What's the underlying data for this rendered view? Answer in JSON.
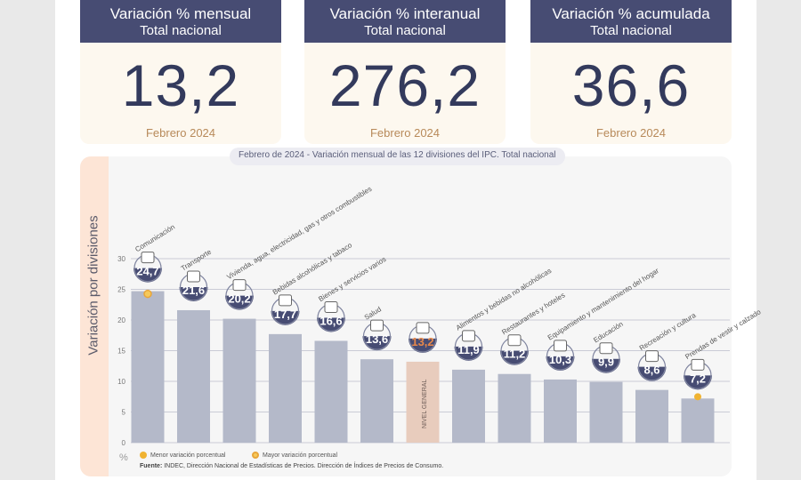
{
  "cards": [
    {
      "title": "Variación % mensual",
      "subtitle": "Total nacional",
      "value": "13,2",
      "date": "Febrero 2024"
    },
    {
      "title": "Variación % interanual",
      "subtitle": "Total nacional",
      "value": "276,2",
      "date": "Febrero 2024"
    },
    {
      "title": "Variación % acumulada",
      "subtitle": "Total nacional",
      "value": "36,6",
      "date": "Febrero 2024"
    }
  ],
  "chart_title": "Febrero de 2024 - Variación mensual de las 12 divisiones del IPC. Total nacional",
  "chart_data": {
    "type": "bar",
    "ylabel": "Variación por divisiones",
    "unit": "%",
    "ylim": [
      0,
      30
    ],
    "yticks": [
      "0",
      "5",
      "10",
      "15",
      "20",
      "25",
      "30"
    ],
    "categories": [
      "Comunicación",
      "Transporte",
      "Vivienda, agua, electricidad, gas y otros combustibles",
      "Bebidas alcohólicas y tabaco",
      "Bienes y servicios varios",
      "Salud",
      "NIVEL GENERAL",
      "Alimentos y bebidas no alcohólicas",
      "Restaurantes y hoteles",
      "Equipamiento y mantenimiento del hogar",
      "Educación",
      "Recreación y cultura",
      "Prendas de vestir y calzado"
    ],
    "values": [
      24.7,
      21.6,
      20.2,
      17.7,
      16.6,
      13.6,
      13.2,
      11.9,
      11.2,
      10.3,
      9.9,
      8.6,
      7.2
    ],
    "value_labels": [
      "24,7",
      "21,6",
      "20,2",
      "17,7",
      "16,6",
      "13,6",
      "13,2",
      "11,9",
      "11,2",
      "10,3",
      "9,9",
      "8,6",
      "7,2"
    ],
    "highlight_index": 6,
    "max_marker_index": 0,
    "min_marker_index": 12,
    "colors": {
      "bar": "#b4b9c9",
      "highlight_bar": "#e8ccbd",
      "badge": "#474c73",
      "highlight_text": "#e8884a",
      "marker": "#f0b332",
      "grid": "#c9cbd6"
    }
  },
  "icons": [
    "phone-icon",
    "car-icon",
    "bulb-icon",
    "bottle-icon",
    "comb-icon",
    "first-aid-icon",
    "basket-icon",
    "food-icon",
    "cutlery-icon",
    "appliance-icon",
    "book-icon",
    "sun-umbrella-icon",
    "shirt-icon"
  ],
  "legend": {
    "min": "Menor variación porcentual",
    "max": "Mayor variación porcentual"
  },
  "source": {
    "label": "Fuente:",
    "text": "INDEC, Dirección Nacional de Estadísticas de Precios. Dirección de Índices de Precios de Consumo."
  }
}
